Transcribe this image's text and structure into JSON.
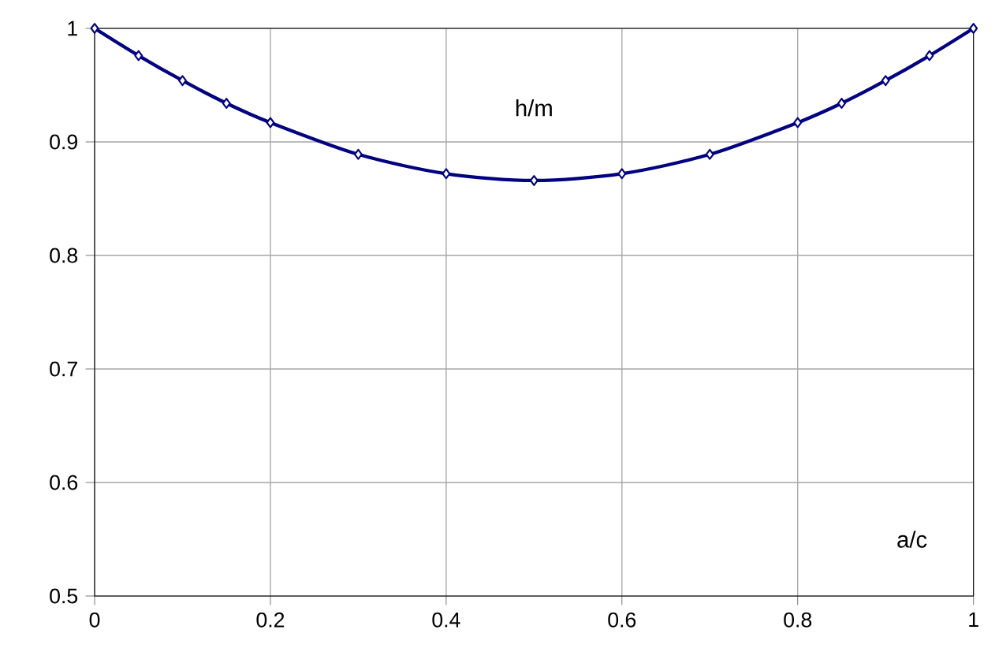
{
  "chart_data": {
    "type": "line",
    "xlabel": "a/c",
    "ylabel": "h/m",
    "x": [
      0,
      0.05,
      0.1,
      0.15,
      0.2,
      0.3,
      0.4,
      0.5,
      0.6,
      0.7,
      0.8,
      0.85,
      0.9,
      0.95,
      1
    ],
    "series": [
      {
        "color": "#000080",
        "values": [
          1.0,
          0.976,
          0.954,
          0.934,
          0.917,
          0.889,
          0.872,
          0.866,
          0.872,
          0.889,
          0.917,
          0.934,
          0.954,
          0.976,
          1.0
        ]
      }
    ],
    "xlim": [
      0,
      1
    ],
    "ylim": [
      0.5,
      1
    ],
    "xticks": [
      {
        "value": 0,
        "label": "0"
      },
      {
        "value": 0.2,
        "label": "0.2"
      },
      {
        "value": 0.4,
        "label": "0.4"
      },
      {
        "value": 0.6,
        "label": "0.6"
      },
      {
        "value": 0.8,
        "label": "0.8"
      },
      {
        "value": 1,
        "label": "1"
      }
    ],
    "yticks": [
      {
        "value": 0.5,
        "label": "0.5"
      },
      {
        "value": 0.6,
        "label": "0.6"
      },
      {
        "value": 0.7,
        "label": "0.7"
      },
      {
        "value": 0.8,
        "label": "0.8"
      },
      {
        "value": 0.9,
        "label": "0.9"
      },
      {
        "value": 1,
        "label": "1"
      }
    ],
    "grid": true,
    "marker": "diamond",
    "line_style": "solid"
  }
}
